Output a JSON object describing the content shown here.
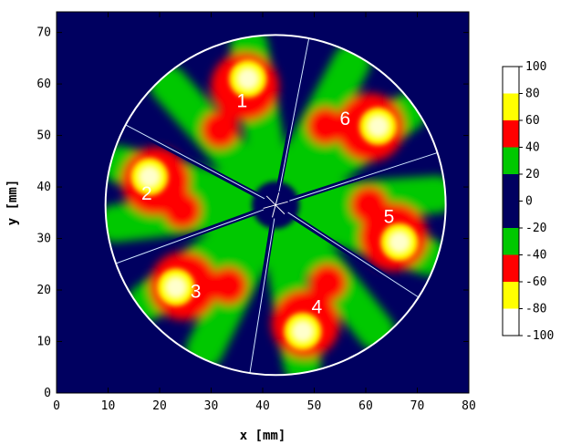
{
  "chart_data": {
    "type": "heatmap",
    "title": "",
    "xlabel": "x [mm]",
    "ylabel": "y [mm]",
    "xlim": [
      0,
      80
    ],
    "ylim": [
      0,
      74
    ],
    "x_ticks": [
      0,
      10,
      20,
      30,
      40,
      50,
      60,
      70,
      80
    ],
    "y_ticks": [
      0,
      10,
      20,
      30,
      40,
      50,
      60,
      70
    ],
    "center": [
      42.5,
      36.5
    ],
    "radius_mm": 33,
    "sectors": [
      {
        "label": "1",
        "x": 36,
        "y": 56.5
      },
      {
        "label": "2",
        "x": 17.5,
        "y": 38.5
      },
      {
        "label": "3",
        "x": 27,
        "y": 19.5
      },
      {
        "label": "4",
        "x": 50.5,
        "y": 16.5
      },
      {
        "label": "5",
        "x": 64.5,
        "y": 34
      },
      {
        "label": "6",
        "x": 56,
        "y": 53
      }
    ],
    "cut_angles_deg": [
      79,
      152,
      200,
      261,
      327,
      18
    ],
    "colorbar": {
      "ticks": [
        100,
        80,
        60,
        40,
        20,
        0,
        -20,
        -40,
        -60,
        -80,
        -100
      ],
      "bands": [
        {
          "range": [
            80,
            100
          ],
          "color": "#ffffff"
        },
        {
          "range": [
            60,
            80
          ],
          "color": "#ffff00"
        },
        {
          "range": [
            40,
            60
          ],
          "color": "#ff0000"
        },
        {
          "range": [
            20,
            40
          ],
          "color": "#00c800"
        },
        {
          "range": [
            -20,
            20
          ],
          "color": "#000060"
        },
        {
          "range": [
            -40,
            -20
          ],
          "color": "#00c800"
        },
        {
          "range": [
            -60,
            -40
          ],
          "color": "#ff0000"
        },
        {
          "range": [
            -80,
            -60
          ],
          "color": "#ffff00"
        },
        {
          "range": [
            -100,
            -80
          ],
          "color": "#ffffff"
        }
      ]
    }
  },
  "colors": {
    "background": "#000060",
    "green": "#00c800",
    "red": "#ff0000",
    "yellow": "#ffff00",
    "white": "#ffffff"
  }
}
